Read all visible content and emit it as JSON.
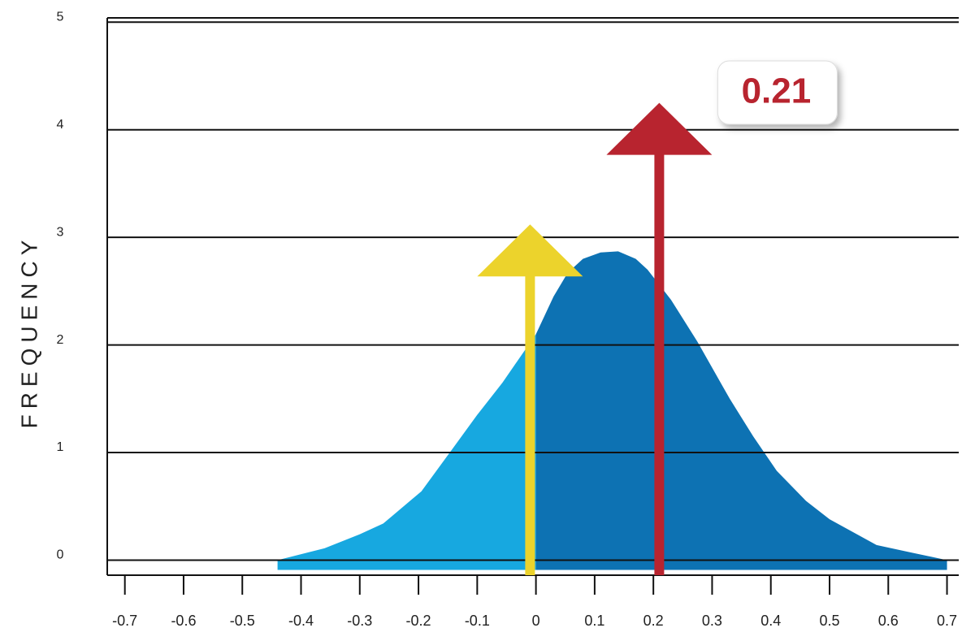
{
  "chart_data": {
    "type": "area",
    "ylabel": "FREQUENCY",
    "xlim": [
      -0.73,
      0.72
    ],
    "ylim": [
      -0.14,
      5.04
    ],
    "xticks": [
      -0.7,
      -0.6,
      -0.5,
      -0.4,
      -0.3,
      -0.2,
      -0.1,
      0,
      0.1,
      0.2,
      0.3,
      0.4,
      0.5,
      0.6,
      0.7
    ],
    "yticks": [
      0,
      1,
      2,
      3,
      4,
      5
    ],
    "grid": true,
    "areas": [
      {
        "color": "#17a8e0",
        "x": [
          -0.44,
          -0.36,
          -0.3,
          -0.26,
          -0.195,
          -0.14,
          -0.1,
          -0.057,
          0
        ],
        "values": [
          0,
          0.11,
          0.24,
          0.34,
          0.64,
          1.05,
          1.35,
          1.65,
          2.1
        ]
      },
      {
        "color": "#0d72b3",
        "x": [
          0,
          0.03,
          0.054,
          0.08,
          0.11,
          0.14,
          0.17,
          0.19,
          0.23,
          0.275,
          0.33,
          0.37,
          0.41,
          0.46,
          0.5,
          0.58,
          0.64,
          0.7
        ],
        "values": [
          2.1,
          2.45,
          2.67,
          2.8,
          2.86,
          2.87,
          2.8,
          2.7,
          2.42,
          2.03,
          1.5,
          1.15,
          0.83,
          0.55,
          0.38,
          0.14,
          0.07,
          0
        ]
      }
    ],
    "markers": [
      {
        "x": -0.01,
        "y": 3.12,
        "color": "#ecd32c"
      },
      {
        "x": 0.21,
        "y": 4.25,
        "color": "#b8242f",
        "label": "0.21"
      }
    ]
  }
}
